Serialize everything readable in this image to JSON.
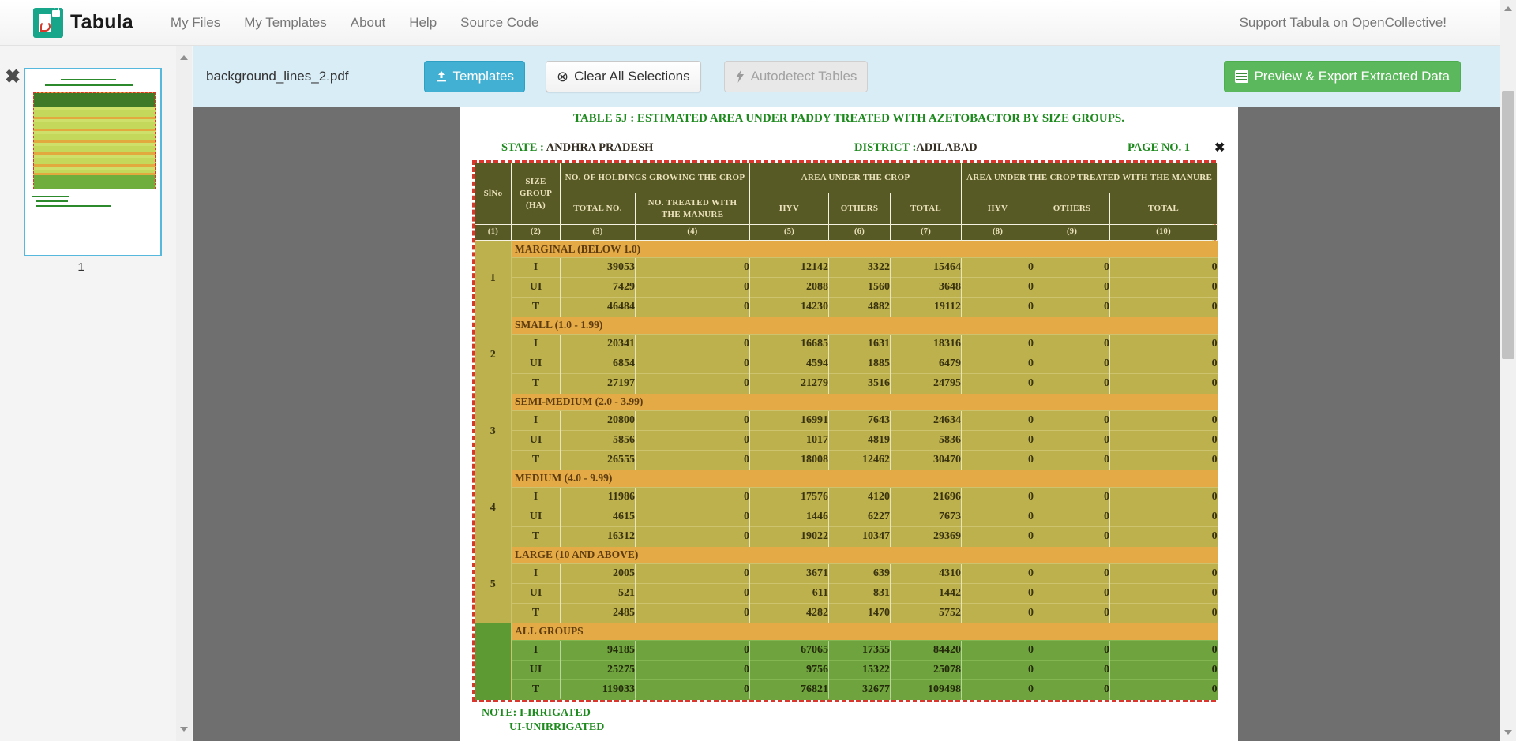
{
  "navbar": {
    "brand": "Tabula",
    "items": [
      "My Files",
      "My Templates",
      "About",
      "Help",
      "Source Code"
    ],
    "support": "Support Tabula on OpenCollective!"
  },
  "toolbar": {
    "filename": "background_lines_2.pdf",
    "templates_label": "Templates",
    "clear_label": "Clear All Selections",
    "autodetect_label": "Autodetect Tables",
    "export_label": "Preview & Export Extracted Data"
  },
  "icons": {
    "remove_file": "✖",
    "close_selection": "✖",
    "clear_circle": "⊗"
  },
  "sidebar": {
    "page_number": "1"
  },
  "document": {
    "title": "TABLE 5J : ESTIMATED AREA UNDER PADDY  TREATED WITH AZETOBACTOR BY SIZE GROUPS.",
    "state_label": "STATE :",
    "state_value": "ANDHRA PRADESH",
    "district_label": "DISTRICT :",
    "district_value": "ADILABAD",
    "page_label": "PAGE NO. 1",
    "note_line1": "NOTE: I-IRRIGATED",
    "note_line2": "UI-UNIRRIGATED"
  },
  "table": {
    "header": {
      "sl_no": "SlNo",
      "size_group": "SIZE GROUP (HA)",
      "holdings": "NO. OF HOLDINGS GROWING THE CROP",
      "area": "AREA UNDER THE CROP",
      "treated": "AREA UNDER THE CROP TREATED WITH THE  MANURE",
      "sub": [
        "TOTAL NO.",
        "NO. TREATED WITH THE  MANURE",
        "HYV",
        "OTHERS",
        "TOTAL",
        "HYV",
        "OTHERS",
        "TOTAL"
      ]
    },
    "col_numbers": [
      "(1)",
      "(2)",
      "(3)",
      "(4)",
      "(5)",
      "(6)",
      "(7)",
      "(8)",
      "(9)",
      "(10)"
    ],
    "sections": [
      {
        "sl_no": "1",
        "group": "MARGINAL (BELOW 1.0)",
        "green": false,
        "rows": [
          {
            "type": "I",
            "values": [
              "39053",
              "0",
              "12142",
              "3322",
              "15464",
              "0",
              "0",
              "0"
            ]
          },
          {
            "type": "UI",
            "values": [
              "7429",
              "0",
              "2088",
              "1560",
              "3648",
              "0",
              "0",
              "0"
            ]
          },
          {
            "type": "T",
            "values": [
              "46484",
              "0",
              "14230",
              "4882",
              "19112",
              "0",
              "0",
              "0"
            ]
          }
        ]
      },
      {
        "sl_no": "2",
        "group": "SMALL (1.0 - 1.99)",
        "green": false,
        "rows": [
          {
            "type": "I",
            "values": [
              "20341",
              "0",
              "16685",
              "1631",
              "18316",
              "0",
              "0",
              "0"
            ]
          },
          {
            "type": "UI",
            "values": [
              "6854",
              "0",
              "4594",
              "1885",
              "6479",
              "0",
              "0",
              "0"
            ]
          },
          {
            "type": "T",
            "values": [
              "27197",
              "0",
              "21279",
              "3516",
              "24795",
              "0",
              "0",
              "0"
            ]
          }
        ]
      },
      {
        "sl_no": "3",
        "group": "SEMI-MEDIUM (2.0 - 3.99)",
        "green": false,
        "rows": [
          {
            "type": "I",
            "values": [
              "20800",
              "0",
              "16991",
              "7643",
              "24634",
              "0",
              "0",
              "0"
            ]
          },
          {
            "type": "UI",
            "values": [
              "5856",
              "0",
              "1017",
              "4819",
              "5836",
              "0",
              "0",
              "0"
            ]
          },
          {
            "type": "T",
            "values": [
              "26555",
              "0",
              "18008",
              "12462",
              "30470",
              "0",
              "0",
              "0"
            ]
          }
        ]
      },
      {
        "sl_no": "4",
        "group": "MEDIUM (4.0 - 9.99)",
        "green": false,
        "rows": [
          {
            "type": "I",
            "values": [
              "11986",
              "0",
              "17576",
              "4120",
              "21696",
              "0",
              "0",
              "0"
            ]
          },
          {
            "type": "UI",
            "values": [
              "4615",
              "0",
              "1446",
              "6227",
              "7673",
              "0",
              "0",
              "0"
            ]
          },
          {
            "type": "T",
            "values": [
              "16312",
              "0",
              "19022",
              "10347",
              "29369",
              "0",
              "0",
              "0"
            ]
          }
        ]
      },
      {
        "sl_no": "5",
        "group": "LARGE (10 AND ABOVE)",
        "green": false,
        "rows": [
          {
            "type": "I",
            "values": [
              "2005",
              "0",
              "3671",
              "639",
              "4310",
              "0",
              "0",
              "0"
            ]
          },
          {
            "type": "UI",
            "values": [
              "521",
              "0",
              "611",
              "831",
              "1442",
              "0",
              "0",
              "0"
            ]
          },
          {
            "type": "T",
            "values": [
              "2485",
              "0",
              "4282",
              "1470",
              "5752",
              "0",
              "0",
              "0"
            ]
          }
        ]
      },
      {
        "sl_no": "",
        "group": "ALL GROUPS",
        "green": true,
        "rows": [
          {
            "type": "I",
            "values": [
              "94185",
              "0",
              "67065",
              "17355",
              "84420",
              "0",
              "0",
              "0"
            ]
          },
          {
            "type": "UI",
            "values": [
              "25275",
              "0",
              "9756",
              "15322",
              "25078",
              "0",
              "0",
              "0"
            ]
          },
          {
            "type": "T",
            "values": [
              "119033",
              "0",
              "76821",
              "32677",
              "109498",
              "0",
              "0",
              "0"
            ]
          }
        ]
      }
    ]
  },
  "colors": {
    "toolbar-bg": "#d9edf7",
    "viewer-gray": "#6f6f6f",
    "selection-red": "#d9372e",
    "header-olive": "#585a26",
    "band-orange": "#e3aa45",
    "row-olive": "#bdb14e",
    "group-green": "#6ea33d",
    "title-green": "#1d8a1d",
    "templates-blue": "#41b0d3",
    "export-green": "#5cb85c"
  }
}
